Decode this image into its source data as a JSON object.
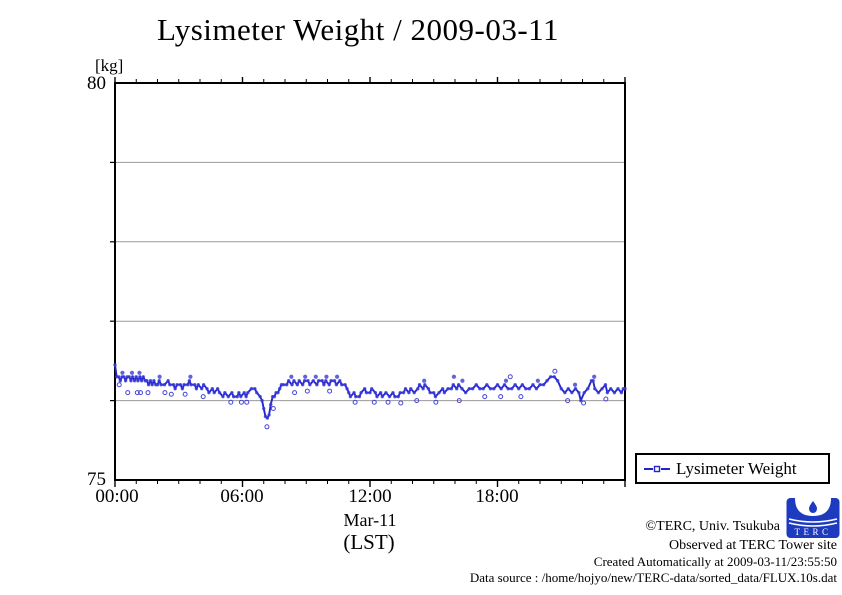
{
  "chart_data": {
    "type": "line",
    "title": "Lysimeter Weight / 2009-03-11",
    "unit_label": "[kg]",
    "x_axis": {
      "ticks": [
        "00:00",
        "06:00",
        "12:00",
        "18:00"
      ],
      "label_line1": "Mar-11",
      "label_line2": "(LST)",
      "range_hours": [
        0,
        24
      ],
      "minor_tick_hours": 1,
      "major_tick_hours": 6
    },
    "y_axis": {
      "min": 75,
      "max": 80,
      "top_label": "80",
      "bottom_label": "75",
      "gridlines": [
        76,
        77,
        78,
        79
      ],
      "grid_color": "#9a9a9a"
    },
    "legend": {
      "label": "Lysimeter Weight",
      "position": "below-right"
    },
    "series": [
      {
        "name": "Lysimeter Weight",
        "color": "#2424cf",
        "marker_color": "#3b3bd8",
        "points": [
          [
            0,
            76.45
          ],
          [
            0.08,
            76.3
          ],
          [
            0.17,
            76.3
          ],
          [
            0.25,
            76.25
          ],
          [
            0.33,
            76.3
          ],
          [
            0.42,
            76.3
          ],
          [
            0.5,
            76.25
          ],
          [
            0.58,
            76.3
          ],
          [
            0.67,
            76.3
          ],
          [
            0.75,
            76.25
          ],
          [
            0.83,
            76.3
          ],
          [
            0.92,
            76.25
          ],
          [
            1,
            76.3
          ],
          [
            1.08,
            76.25
          ],
          [
            1.17,
            76.3
          ],
          [
            1.25,
            76.25
          ],
          [
            1.33,
            76.3
          ],
          [
            1.42,
            76.25
          ],
          [
            1.5,
            76.25
          ],
          [
            1.58,
            76.2
          ],
          [
            1.67,
            76.25
          ],
          [
            1.75,
            76.2
          ],
          [
            1.83,
            76.25
          ],
          [
            1.92,
            76.2
          ],
          [
            2,
            76.2
          ],
          [
            2.08,
            76.25
          ],
          [
            2.17,
            76.2
          ],
          [
            2.33,
            76.2
          ],
          [
            2.5,
            76.25
          ],
          [
            2.58,
            76.2
          ],
          [
            2.75,
            76.2
          ],
          [
            2.83,
            76.15
          ],
          [
            2.92,
            76.2
          ],
          [
            3.08,
            76.2
          ],
          [
            3.17,
            76.15
          ],
          [
            3.25,
            76.2
          ],
          [
            3.42,
            76.2
          ],
          [
            3.5,
            76.25
          ],
          [
            3.58,
            76.2
          ],
          [
            3.75,
            76.2
          ],
          [
            3.83,
            76.15
          ],
          [
            3.92,
            76.2
          ],
          [
            4.08,
            76.15
          ],
          [
            4.17,
            76.2
          ],
          [
            4.33,
            76.15
          ],
          [
            4.42,
            76.1
          ],
          [
            4.58,
            76.15
          ],
          [
            4.67,
            76.1
          ],
          [
            4.83,
            76.15
          ],
          [
            4.92,
            76.1
          ],
          [
            5.08,
            76.05
          ],
          [
            5.17,
            76.1
          ],
          [
            5.33,
            76.05
          ],
          [
            5.5,
            76.1
          ],
          [
            5.58,
            76.05
          ],
          [
            5.75,
            76.05
          ],
          [
            5.83,
            76.1
          ],
          [
            5.92,
            76.05
          ],
          [
            6.08,
            76.1
          ],
          [
            6.17,
            76.05
          ],
          [
            6.25,
            76.1
          ],
          [
            6.42,
            76.15
          ],
          [
            6.58,
            76.15
          ],
          [
            6.67,
            76.1
          ],
          [
            6.83,
            76.05
          ],
          [
            6.92,
            76
          ],
          [
            7,
            75.9
          ],
          [
            7.08,
            75.8
          ],
          [
            7.17,
            75.78
          ],
          [
            7.25,
            75.82
          ],
          [
            7.33,
            75.95
          ],
          [
            7.42,
            76.05
          ],
          [
            7.5,
            76.05
          ],
          [
            7.58,
            76.1
          ],
          [
            7.67,
            76.1
          ],
          [
            7.75,
            76.15
          ],
          [
            7.83,
            76.2
          ],
          [
            7.92,
            76.2
          ],
          [
            8.08,
            76.2
          ],
          [
            8.17,
            76.25
          ],
          [
            8.33,
            76.2
          ],
          [
            8.42,
            76.25
          ],
          [
            8.58,
            76.2
          ],
          [
            8.67,
            76.25
          ],
          [
            8.83,
            76.2
          ],
          [
            8.92,
            76.25
          ],
          [
            9.08,
            76.25
          ],
          [
            9.17,
            76.2
          ],
          [
            9.33,
            76.25
          ],
          [
            9.5,
            76.2
          ],
          [
            9.58,
            76.25
          ],
          [
            9.75,
            76.25
          ],
          [
            9.83,
            76.2
          ],
          [
            9.92,
            76.25
          ],
          [
            10.08,
            76.2
          ],
          [
            10.17,
            76.25
          ],
          [
            10.33,
            76.25
          ],
          [
            10.42,
            76.2
          ],
          [
            10.58,
            76.25
          ],
          [
            10.67,
            76.2
          ],
          [
            10.83,
            76.2
          ],
          [
            10.92,
            76.15
          ],
          [
            11,
            76.1
          ],
          [
            11.08,
            76.05
          ],
          [
            11.25,
            76.1
          ],
          [
            11.33,
            76.05
          ],
          [
            11.5,
            76.05
          ],
          [
            11.58,
            76.1
          ],
          [
            11.75,
            76.15
          ],
          [
            11.83,
            76.1
          ],
          [
            12,
            76.1
          ],
          [
            12.08,
            76.15
          ],
          [
            12.25,
            76.1
          ],
          [
            12.33,
            76.05
          ],
          [
            12.5,
            76.1
          ],
          [
            12.58,
            76.05
          ],
          [
            12.75,
            76.1
          ],
          [
            12.92,
            76.05
          ],
          [
            13.08,
            76.1
          ],
          [
            13.17,
            76.05
          ],
          [
            13.33,
            76.05
          ],
          [
            13.42,
            76.1
          ],
          [
            13.58,
            76.1
          ],
          [
            13.67,
            76.15
          ],
          [
            13.83,
            76.1
          ],
          [
            13.92,
            76.15
          ],
          [
            14.08,
            76.1
          ],
          [
            14.25,
            76.15
          ],
          [
            14.33,
            76.2
          ],
          [
            14.5,
            76.15
          ],
          [
            14.58,
            76.2
          ],
          [
            14.75,
            76.15
          ],
          [
            14.83,
            76.1
          ],
          [
            15,
            76.1
          ],
          [
            15.08,
            76.05
          ],
          [
            15.25,
            76.1
          ],
          [
            15.42,
            76.15
          ],
          [
            15.5,
            76.1
          ],
          [
            15.67,
            76.15
          ],
          [
            15.83,
            76.15
          ],
          [
            15.92,
            76.2
          ],
          [
            16.08,
            76.15
          ],
          [
            16.17,
            76.2
          ],
          [
            16.33,
            76.15
          ],
          [
            16.5,
            76.1
          ],
          [
            16.67,
            76.15
          ],
          [
            16.83,
            76.15
          ],
          [
            17,
            76.2
          ],
          [
            17.17,
            76.15
          ],
          [
            17.33,
            76.15
          ],
          [
            17.5,
            76.2
          ],
          [
            17.67,
            76.15
          ],
          [
            17.83,
            76.15
          ],
          [
            18,
            76.2
          ],
          [
            18.17,
            76.15
          ],
          [
            18.33,
            76.2
          ],
          [
            18.5,
            76.15
          ],
          [
            18.67,
            76.15
          ],
          [
            18.83,
            76.2
          ],
          [
            19,
            76.15
          ],
          [
            19.17,
            76.2
          ],
          [
            19.33,
            76.15
          ],
          [
            19.5,
            76.15
          ],
          [
            19.67,
            76.2
          ],
          [
            19.83,
            76.15
          ],
          [
            20,
            76.2
          ],
          [
            20.17,
            76.2
          ],
          [
            20.33,
            76.25
          ],
          [
            20.5,
            76.3
          ],
          [
            20.67,
            76.3
          ],
          [
            20.83,
            76.25
          ],
          [
            21,
            76.15
          ],
          [
            21.17,
            76.1
          ],
          [
            21.33,
            76.15
          ],
          [
            21.5,
            76.1
          ],
          [
            21.67,
            76.15
          ],
          [
            21.83,
            76.1
          ],
          [
            21.92,
            76
          ],
          [
            22.08,
            76.1
          ],
          [
            22.25,
            76.15
          ],
          [
            22.42,
            76.25
          ],
          [
            22.5,
            76.25
          ],
          [
            22.58,
            76.15
          ],
          [
            22.75,
            76.1
          ],
          [
            22.92,
            76.15
          ],
          [
            23.08,
            76.2
          ],
          [
            23.17,
            76.1
          ],
          [
            23.33,
            76.15
          ],
          [
            23.5,
            76.1
          ],
          [
            23.67,
            76.15
          ],
          [
            23.83,
            76.1
          ],
          [
            23.92,
            76.15
          ],
          [
            24,
            76.15
          ]
        ]
      }
    ],
    "scatter_dots_filled": [
      [
        0.35,
        76.35
      ],
      [
        0.8,
        76.35
      ],
      [
        1.15,
        76.35
      ],
      [
        2.1,
        76.3
      ],
      [
        3.55,
        76.3
      ],
      [
        8.3,
        76.3
      ],
      [
        8.95,
        76.3
      ],
      [
        9.45,
        76.3
      ],
      [
        9.95,
        76.3
      ],
      [
        10.45,
        76.3
      ],
      [
        14.55,
        76.25
      ],
      [
        15.95,
        76.3
      ],
      [
        16.35,
        76.25
      ],
      [
        18.4,
        76.25
      ],
      [
        19.9,
        76.25
      ],
      [
        21.65,
        76.2
      ],
      [
        22.55,
        76.3
      ]
    ],
    "scatter_dots_open": [
      [
        0.2,
        76.2
      ],
      [
        0.6,
        76.1
      ],
      [
        1.05,
        76.1
      ],
      [
        1.2,
        76.1
      ],
      [
        1.55,
        76.1
      ],
      [
        2.35,
        76.1
      ],
      [
        2.65,
        76.08
      ],
      [
        3.3,
        76.08
      ],
      [
        4.15,
        76.05
      ],
      [
        5.45,
        75.98
      ],
      [
        5.95,
        75.98
      ],
      [
        6.2,
        75.98
      ],
      [
        7.15,
        75.67
      ],
      [
        7.45,
        75.9
      ],
      [
        8.45,
        76.1
      ],
      [
        9.05,
        76.12
      ],
      [
        10.1,
        76.12
      ],
      [
        11.3,
        75.98
      ],
      [
        12.2,
        75.98
      ],
      [
        12.85,
        75.98
      ],
      [
        13.45,
        75.97
      ],
      [
        14.2,
        76.0
      ],
      [
        15.1,
        75.98
      ],
      [
        16.2,
        76.0
      ],
      [
        17.4,
        76.05
      ],
      [
        18.15,
        76.05
      ],
      [
        18.6,
        76.3
      ],
      [
        19.1,
        76.05
      ],
      [
        20.7,
        76.37
      ],
      [
        21.3,
        76.0
      ],
      [
        22.05,
        75.97
      ],
      [
        23.1,
        76.02
      ]
    ]
  },
  "footer": {
    "line1": "©TERC, Univ. Tsukuba",
    "line2": "Observed at TERC Tower site",
    "line3": "Created Automatically at 2009-03-11/23:55:50",
    "line4": "Data source : /home/hojyo/new/TERC-data/sorted_data/FLUX.10s.dat",
    "logo_text": "TERC",
    "logo_color": "#1e3bbf"
  }
}
